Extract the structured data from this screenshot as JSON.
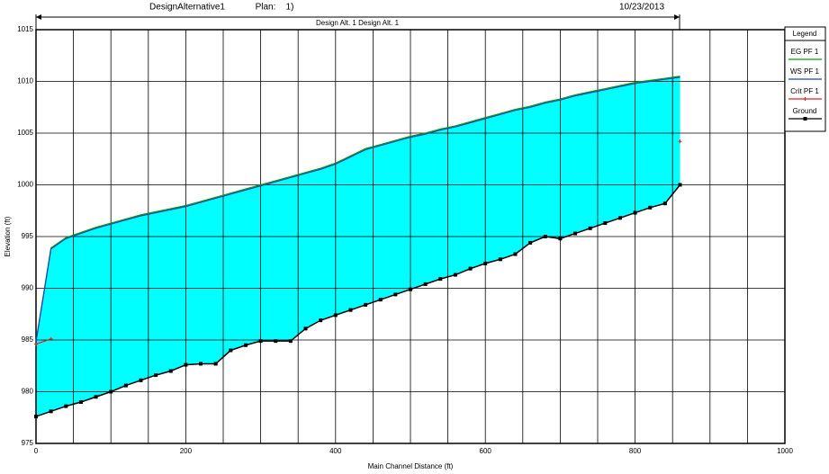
{
  "chart_data": {
    "type": "line",
    "header": {
      "plan_name": "DesignAlternative1",
      "plan_label": "Plan:",
      "plan_number": "1)",
      "date": "10/23/2013",
      "reach_label": "Design Alt. 1 Design Alt. 1"
    },
    "x_label": "Main Channel Distance (ft)",
    "y_label": "Elevation (ft)",
    "legend_title": "Legend",
    "x": [
      0,
      20,
      40,
      60,
      80,
      100,
      120,
      140,
      160,
      180,
      200,
      220,
      240,
      260,
      280,
      300,
      320,
      340,
      360,
      380,
      400,
      420,
      440,
      460,
      480,
      500,
      520,
      540,
      560,
      580,
      600,
      620,
      640,
      660,
      680,
      700,
      720,
      740,
      760,
      780,
      800,
      820,
      840,
      860
    ],
    "series": [
      {
        "name": "EG PF 1",
        "color": "#00a000",
        "values": [
          984.9,
          993.9,
          994.9,
          995.4,
          995.9,
          996.3,
          996.7,
          997.1,
          997.4,
          997.7,
          998.0,
          998.4,
          998.8,
          999.2,
          999.6,
          1000.0,
          1000.4,
          1000.8,
          1001.2,
          1001.6,
          1002.1,
          1002.8,
          1003.5,
          1003.9,
          1004.3,
          1004.7,
          1005.0,
          1005.4,
          1005.7,
          1006.1,
          1006.5,
          1006.9,
          1007.3,
          1007.6,
          1008.0,
          1008.3,
          1008.7,
          1009.0,
          1009.3,
          1009.6,
          1009.9,
          1010.1,
          1010.3,
          1010.5
        ]
      },
      {
        "name": "WS PF 1",
        "color": "#2040c0",
        "values": [
          984.8,
          993.8,
          994.8,
          995.3,
          995.8,
          996.2,
          996.6,
          997.0,
          997.3,
          997.6,
          997.9,
          998.3,
          998.7,
          999.1,
          999.5,
          999.9,
          1000.3,
          1000.7,
          1001.1,
          1001.5,
          1002.0,
          1002.7,
          1003.4,
          1003.8,
          1004.2,
          1004.6,
          1004.9,
          1005.3,
          1005.6,
          1006.0,
          1006.4,
          1006.8,
          1007.2,
          1007.5,
          1007.9,
          1008.2,
          1008.6,
          1008.9,
          1009.2,
          1009.5,
          1009.8,
          1010.0,
          1010.2,
          1010.4
        ]
      },
      {
        "name": "Crit PF 1",
        "color": "#e02020",
        "marker": "plus",
        "values": [
          984.6,
          985.1,
          null,
          null,
          null,
          null,
          null,
          null,
          null,
          null,
          null,
          null,
          null,
          null,
          null,
          null,
          null,
          null,
          null,
          null,
          null,
          null,
          null,
          null,
          null,
          null,
          null,
          null,
          null,
          null,
          null,
          null,
          null,
          null,
          null,
          null,
          null,
          null,
          null,
          null,
          null,
          null,
          null,
          1004.2
        ]
      },
      {
        "name": "Ground",
        "color": "#000000",
        "marker": "square",
        "values": [
          977.6,
          978.1,
          978.6,
          979.0,
          979.5,
          980.0,
          980.6,
          981.1,
          981.6,
          982.0,
          982.6,
          982.7,
          982.7,
          984.0,
          984.5,
          984.9,
          984.9,
          984.9,
          986.1,
          986.9,
          987.4,
          987.9,
          988.4,
          988.9,
          989.4,
          989.9,
          990.4,
          990.9,
          991.3,
          991.9,
          992.4,
          992.8,
          993.3,
          994.4,
          995.0,
          994.8,
          995.3,
          995.8,
          996.3,
          996.8,
          997.3,
          997.8,
          998.2,
          1000.0
        ]
      }
    ],
    "fill": "#00ffff",
    "xlim": [
      0,
      1000
    ],
    "ylim": [
      975,
      1015
    ],
    "xticks": [
      0,
      200,
      400,
      600,
      800,
      1000
    ],
    "xminorticks": [
      50,
      100,
      150,
      250,
      300,
      350,
      450,
      500,
      550,
      650,
      700,
      750,
      850,
      900,
      950
    ],
    "yticks": [
      975,
      980,
      985,
      990,
      995,
      1000,
      1005,
      1010,
      1015
    ],
    "grid": true
  }
}
